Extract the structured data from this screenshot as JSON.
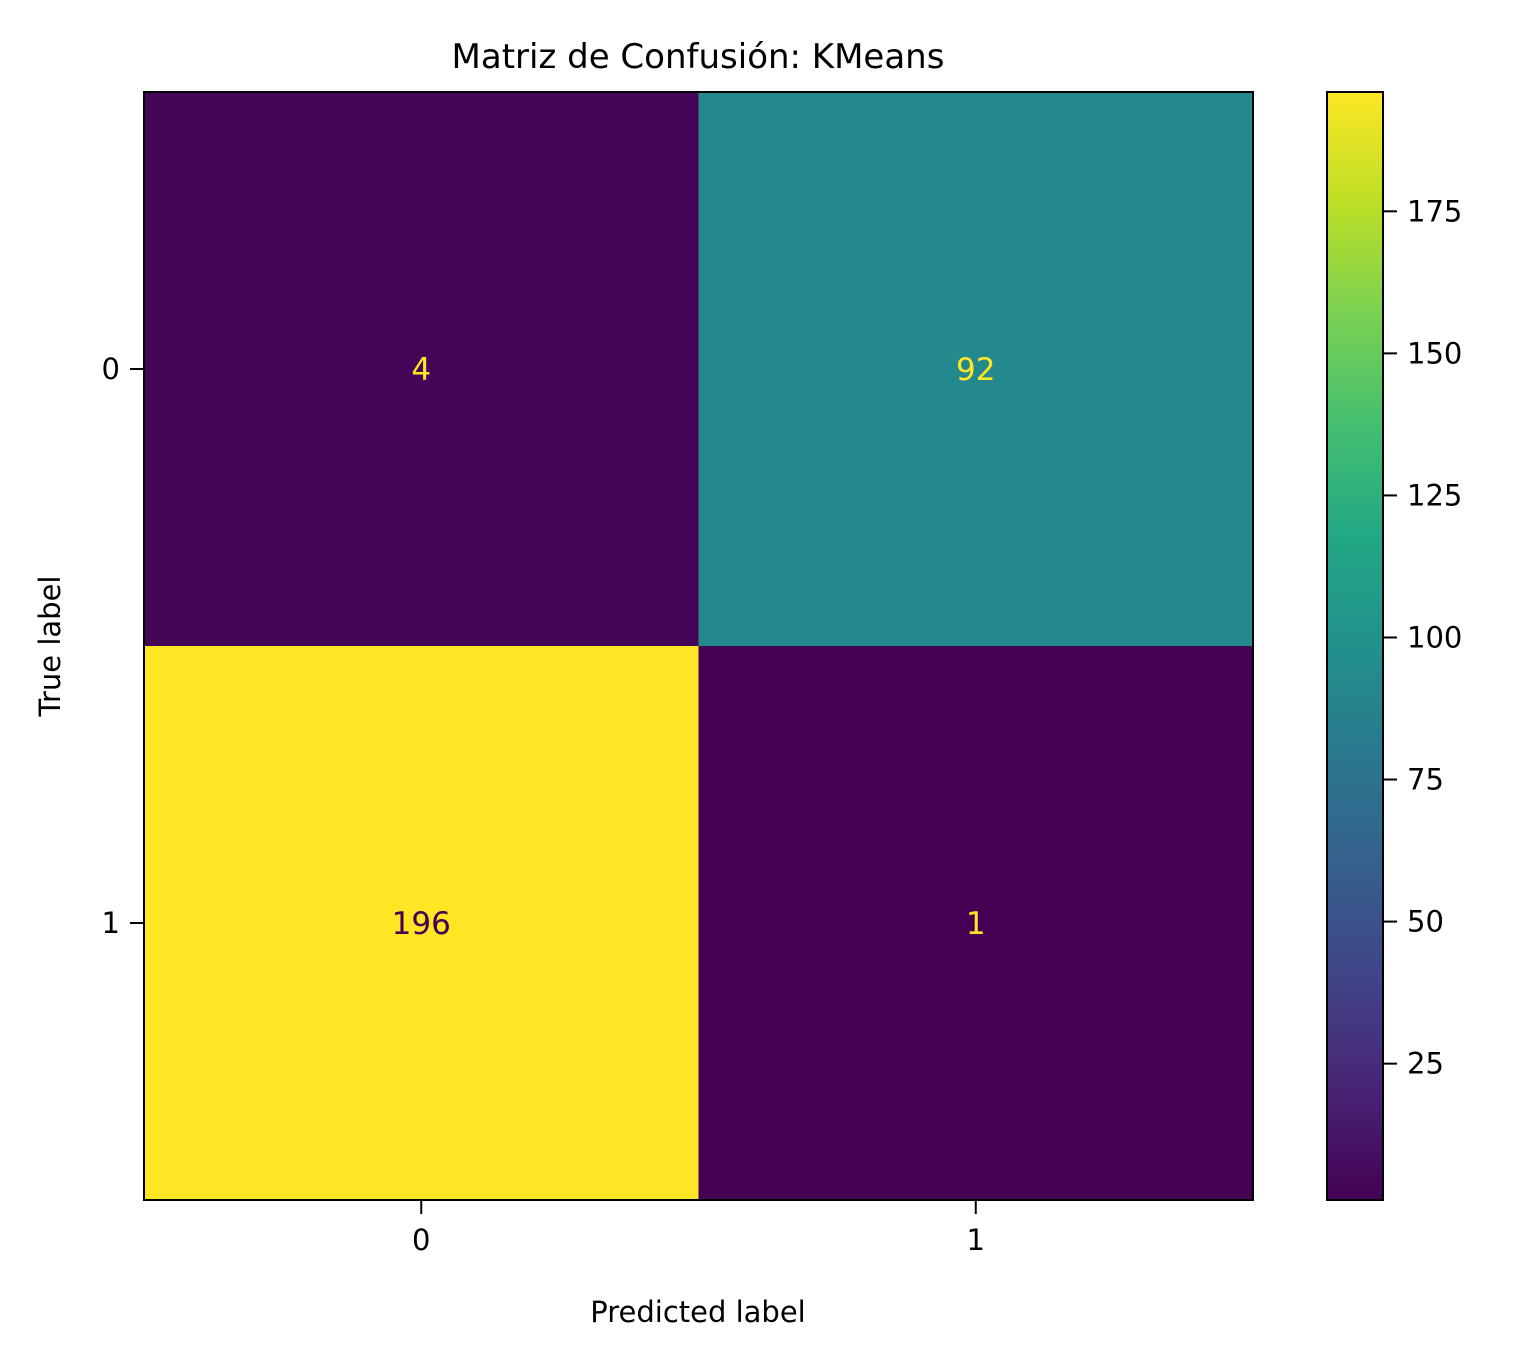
{
  "chart_data": {
    "type": "heatmap",
    "title": "Matriz de Confusión: KMeans",
    "xlabel": "Predicted label",
    "ylabel": "True label",
    "x_categories": [
      "0",
      "1"
    ],
    "y_categories": [
      "0",
      "1"
    ],
    "matrix": [
      [
        4,
        92
      ],
      [
        196,
        1
      ]
    ],
    "colormap": "viridis",
    "colorbar": {
      "range": [
        1,
        196
      ],
      "ticks": [
        25,
        50,
        75,
        100,
        125,
        150,
        175
      ],
      "tick_labels": [
        "25",
        "50",
        "75",
        "100",
        "125",
        "150",
        "175"
      ]
    },
    "text_colors": {
      "on_dark": "#fde725",
      "on_light": "#440154"
    },
    "grid": false
  }
}
